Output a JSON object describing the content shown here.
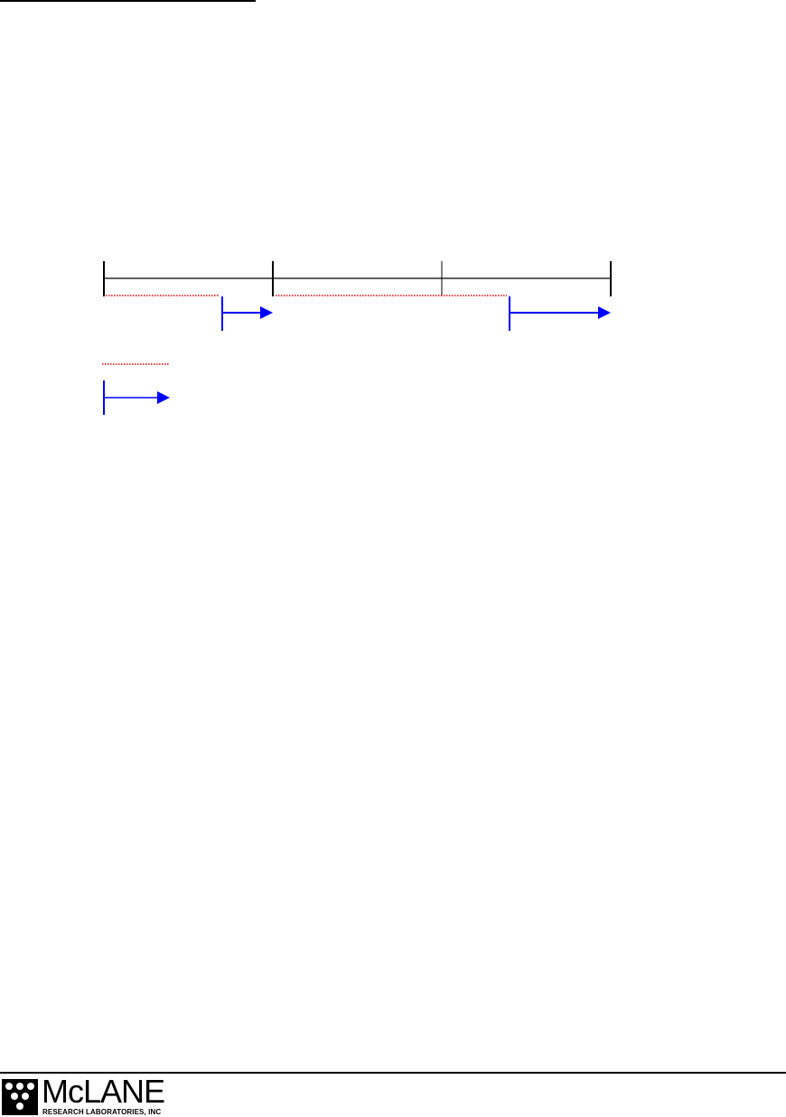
{
  "page": {
    "diagram": {
      "colors": {
        "timeline": "#000000",
        "dotted_interval": "#ff0000",
        "arrow_interval": "#0000ff"
      },
      "icons": [
        "red-dotted-line",
        "blue-arrow"
      ]
    },
    "footer": {
      "logo": {
        "name": "McLANE",
        "subtitle": "RESEARCH LABORATORIES, INC"
      }
    }
  }
}
